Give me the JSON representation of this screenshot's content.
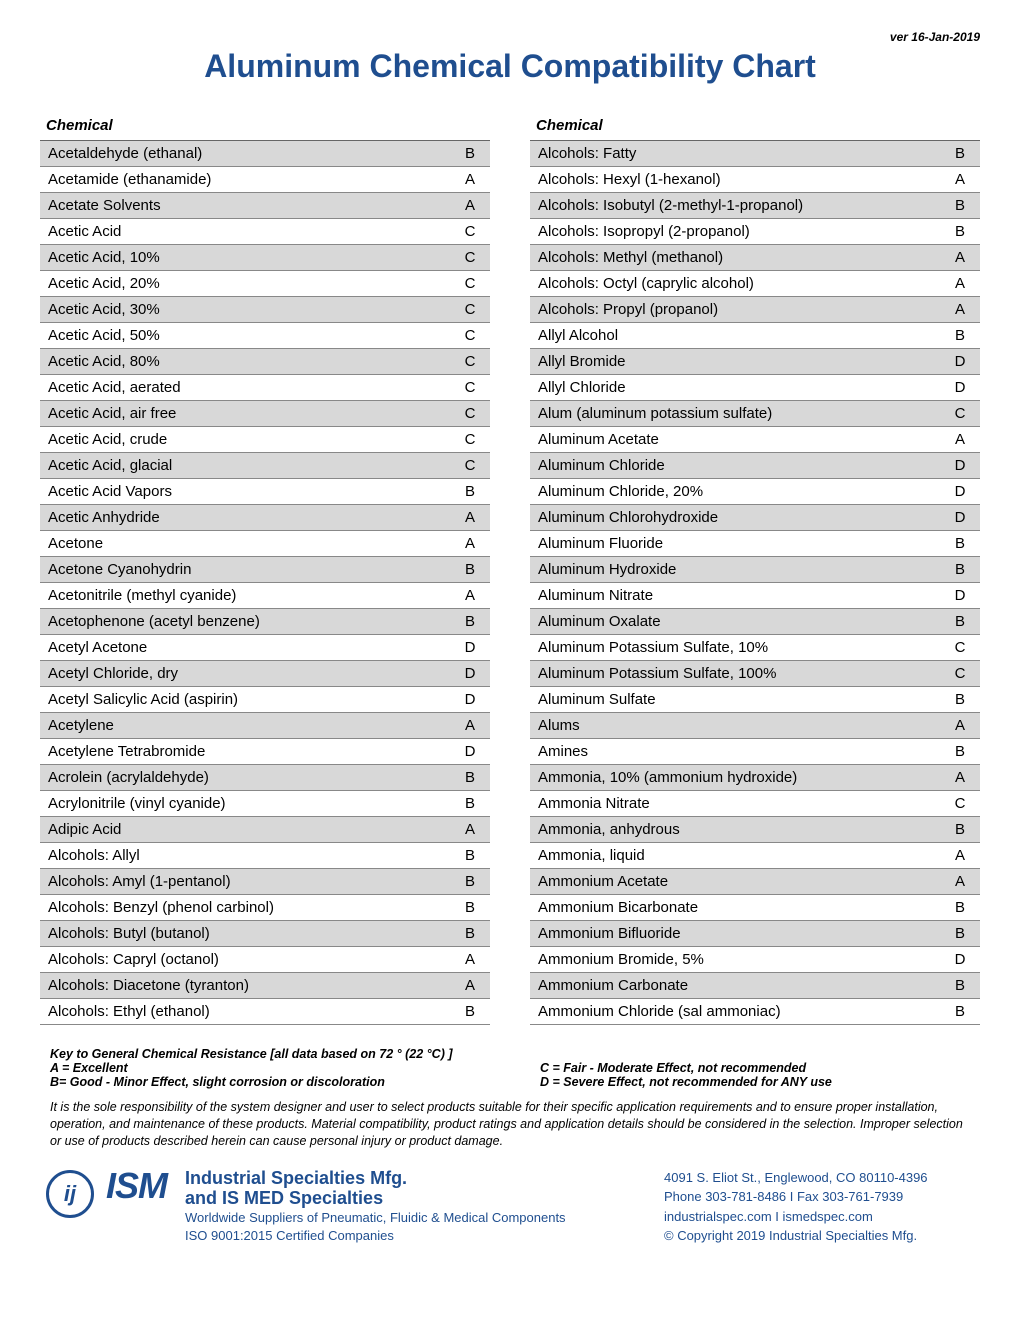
{
  "version": "ver 16-Jan-2019",
  "title": "Aluminum Chemical Compatibility Chart",
  "columnHeader": "Chemical",
  "leftColumn": [
    {
      "name": "Acetaldehyde (ethanal)",
      "rating": "B"
    },
    {
      "name": "Acetamide (ethanamide)",
      "rating": "A"
    },
    {
      "name": "Acetate Solvents",
      "rating": "A"
    },
    {
      "name": "Acetic Acid",
      "rating": "C"
    },
    {
      "name": "Acetic Acid, 10%",
      "rating": "C"
    },
    {
      "name": "Acetic Acid, 20%",
      "rating": "C"
    },
    {
      "name": "Acetic Acid, 30%",
      "rating": "C"
    },
    {
      "name": "Acetic Acid, 50%",
      "rating": "C"
    },
    {
      "name": "Acetic Acid, 80%",
      "rating": "C"
    },
    {
      "name": "Acetic Acid, aerated",
      "rating": "C"
    },
    {
      "name": "Acetic Acid, air free",
      "rating": "C"
    },
    {
      "name": "Acetic Acid, crude",
      "rating": "C"
    },
    {
      "name": "Acetic Acid, glacial",
      "rating": "C"
    },
    {
      "name": "Acetic Acid Vapors",
      "rating": "B"
    },
    {
      "name": "Acetic Anhydride",
      "rating": "A"
    },
    {
      "name": "Acetone",
      "rating": "A"
    },
    {
      "name": "Acetone Cyanohydrin",
      "rating": "B"
    },
    {
      "name": "Acetonitrile (methyl cyanide)",
      "rating": "A"
    },
    {
      "name": "Acetophenone (acetyl benzene)",
      "rating": "B"
    },
    {
      "name": "Acetyl Acetone",
      "rating": "D"
    },
    {
      "name": "Acetyl Chloride, dry",
      "rating": "D"
    },
    {
      "name": "Acetyl Salicylic Acid (aspirin)",
      "rating": "D"
    },
    {
      "name": "Acetylene",
      "rating": "A"
    },
    {
      "name": "Acetylene Tetrabromide",
      "rating": "D"
    },
    {
      "name": "Acrolein (acrylaldehyde)",
      "rating": "B"
    },
    {
      "name": "Acrylonitrile (vinyl cyanide)",
      "rating": "B"
    },
    {
      "name": "Adipic Acid",
      "rating": "A"
    },
    {
      "name": "Alcohols: Allyl",
      "rating": "B"
    },
    {
      "name": "Alcohols: Amyl (1-pentanol)",
      "rating": "B"
    },
    {
      "name": "Alcohols: Benzyl (phenol carbinol)",
      "rating": "B"
    },
    {
      "name": "Alcohols: Butyl (butanol)",
      "rating": "B"
    },
    {
      "name": "Alcohols: Capryl (octanol)",
      "rating": "A"
    },
    {
      "name": "Alcohols: Diacetone (tyranton)",
      "rating": "A"
    },
    {
      "name": "Alcohols: Ethyl (ethanol)",
      "rating": "B"
    }
  ],
  "rightColumn": [
    {
      "name": "Alcohols: Fatty",
      "rating": "B"
    },
    {
      "name": "Alcohols: Hexyl (1-hexanol)",
      "rating": "A"
    },
    {
      "name": "Alcohols: Isobutyl (2-methyl-1-propanol)",
      "rating": "B"
    },
    {
      "name": "Alcohols: Isopropyl (2-propanol)",
      "rating": "B"
    },
    {
      "name": "Alcohols: Methyl (methanol)",
      "rating": "A"
    },
    {
      "name": "Alcohols: Octyl (caprylic alcohol)",
      "rating": "A"
    },
    {
      "name": "Alcohols: Propyl (propanol)",
      "rating": "A"
    },
    {
      "name": "Allyl Alcohol",
      "rating": "B"
    },
    {
      "name": "Allyl Bromide",
      "rating": "D"
    },
    {
      "name": "Allyl Chloride",
      "rating": "D"
    },
    {
      "name": "Alum (aluminum potassium sulfate)",
      "rating": "C"
    },
    {
      "name": "Aluminum Acetate",
      "rating": "A"
    },
    {
      "name": "Aluminum Chloride",
      "rating": "D"
    },
    {
      "name": "Aluminum Chloride, 20%",
      "rating": "D"
    },
    {
      "name": "Aluminum Chlorohydroxide",
      "rating": "D"
    },
    {
      "name": "Aluminum Fluoride",
      "rating": "B"
    },
    {
      "name": "Aluminum Hydroxide",
      "rating": "B"
    },
    {
      "name": "Aluminum Nitrate",
      "rating": "D"
    },
    {
      "name": "Aluminum Oxalate",
      "rating": "B"
    },
    {
      "name": "Aluminum Potassium Sulfate, 10%",
      "rating": "C"
    },
    {
      "name": "Aluminum Potassium Sulfate, 100%",
      "rating": "C"
    },
    {
      "name": "Aluminum Sulfate",
      "rating": "B"
    },
    {
      "name": "Alums",
      "rating": "A"
    },
    {
      "name": "Amines",
      "rating": "B"
    },
    {
      "name": "Ammonia, 10% (ammonium hydroxide)",
      "rating": "A"
    },
    {
      "name": "Ammonia Nitrate",
      "rating": "C"
    },
    {
      "name": "Ammonia, anhydrous",
      "rating": "B"
    },
    {
      "name": "Ammonia, liquid",
      "rating": "A"
    },
    {
      "name": "Ammonium Acetate",
      "rating": "A"
    },
    {
      "name": "Ammonium Bicarbonate",
      "rating": "B"
    },
    {
      "name": "Ammonium Bifluoride",
      "rating": "B"
    },
    {
      "name": "Ammonium Bromide, 5%",
      "rating": "D"
    },
    {
      "name": "Ammonium Carbonate",
      "rating": "B"
    },
    {
      "name": "Ammonium Chloride (sal ammoniac)",
      "rating": "B"
    }
  ],
  "key": {
    "title": "Key to General Chemical Resistance [all data based on 72 ° (22 °C) ]",
    "a": "A = Excellent",
    "b": "B= Good - Minor Effect, slight corrosion or discoloration",
    "c": "C = Fair - Moderate Effect, not recommended",
    "d": "D = Severe Effect, not recommended for ANY use"
  },
  "disclaimer": "It is the sole responsibility of the system designer and user to select products suitable for their specific application requirements and to ensure proper installation, operation, and maintenance of these products. Material compatibility, product ratings and application details should be considered in the selection. Improper selection or use of products described herein can cause personal injury or product damage.",
  "footer": {
    "logoGlyph": "ij",
    "logoText": "ISM",
    "companyLine1": "Industrial Specialties Mfg.",
    "companyLine2": "and IS MED Specialties",
    "tagline": "Worldwide Suppliers of Pneumatic, Fluidic & Medical Components",
    "cert": "ISO 9001:2015 Certified Companies",
    "address": "4091 S. Eliot St., Englewood, CO 80110-4396",
    "phone": "Phone 303-781-8486 I Fax 303-761-7939",
    "web": "industrialspec.com  I ismedspec.com",
    "copyright": "© Copyright 2019 Industrial Specialties Mfg."
  }
}
